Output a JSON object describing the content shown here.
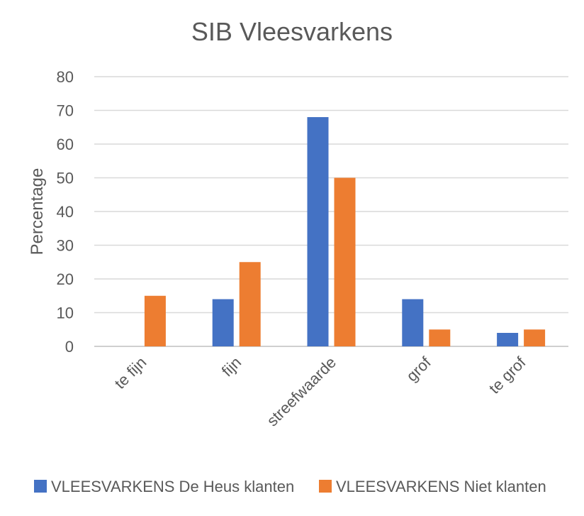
{
  "chart_data": {
    "type": "bar",
    "title": "SIB Vleesvarkens",
    "xlabel": "",
    "ylabel": "Percentage",
    "categories": [
      "te fijn",
      "fijn",
      "streefwaarde",
      "grof",
      "te grof"
    ],
    "ylim": [
      0,
      80
    ],
    "yticks": [
      0,
      10,
      20,
      30,
      40,
      50,
      60,
      70,
      80
    ],
    "grid": true,
    "legend_position": "bottom",
    "series": [
      {
        "name": "VLEESVARKENS De Heus klanten",
        "color": "#4472C4",
        "values": [
          0,
          14,
          68,
          14,
          4
        ]
      },
      {
        "name": "VLEESVARKENS Niet klanten",
        "color": "#ED7D31",
        "values": [
          15,
          25,
          50,
          5,
          5
        ]
      }
    ]
  }
}
